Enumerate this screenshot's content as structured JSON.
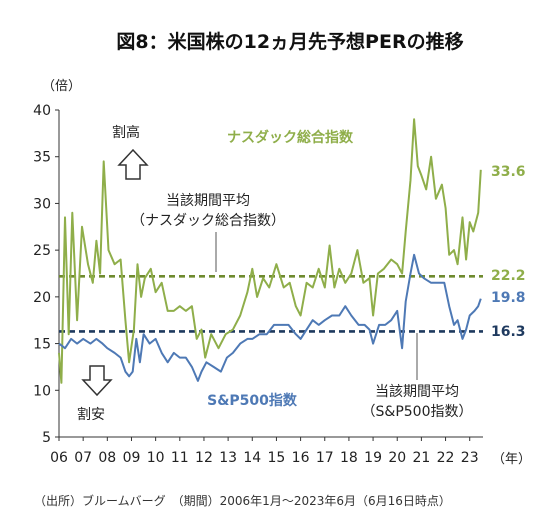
{
  "chart_data": {
    "type": "line",
    "title": "図8：米国株の12ヵ月先予想PERの推移",
    "ylabel": "（倍）",
    "xlabel": "（年）",
    "ylim": [
      5,
      40
    ],
    "yticks": [
      5,
      10,
      15,
      20,
      25,
      30,
      35,
      40
    ],
    "xlim": [
      2006.0,
      2023.55
    ],
    "xticks": [
      2006,
      2007,
      2008,
      2009,
      2010,
      2011,
      2012,
      2013,
      2014,
      2015,
      2016,
      2017,
      2018,
      2019,
      2020,
      2021,
      2022,
      2023
    ],
    "xtick_labels": [
      "06",
      "07",
      "08",
      "09",
      "10",
      "11",
      "12",
      "13",
      "14",
      "15",
      "16",
      "17",
      "18",
      "19",
      "20",
      "21",
      "22",
      "23"
    ],
    "series": [
      {
        "name": "ナスダック総合指数",
        "color": "#8fae4a",
        "end_label": "33.6",
        "points": [
          [
            2006.0,
            14.0
          ],
          [
            2006.1,
            10.8
          ],
          [
            2006.25,
            28.5
          ],
          [
            2006.4,
            16.0
          ],
          [
            2006.55,
            29.0
          ],
          [
            2006.75,
            17.5
          ],
          [
            2006.95,
            27.5
          ],
          [
            2007.2,
            23.5
          ],
          [
            2007.4,
            21.5
          ],
          [
            2007.55,
            26.0
          ],
          [
            2007.7,
            22.5
          ],
          [
            2007.85,
            34.5
          ],
          [
            2008.05,
            25.0
          ],
          [
            2008.3,
            23.5
          ],
          [
            2008.55,
            24.0
          ],
          [
            2008.75,
            17.5
          ],
          [
            2008.9,
            13.0
          ],
          [
            2009.1,
            16.5
          ],
          [
            2009.25,
            23.5
          ],
          [
            2009.4,
            20.0
          ],
          [
            2009.55,
            22.0
          ],
          [
            2009.8,
            23.0
          ],
          [
            2010.0,
            20.5
          ],
          [
            2010.25,
            21.5
          ],
          [
            2010.5,
            18.5
          ],
          [
            2010.75,
            18.5
          ],
          [
            2011.0,
            19.0
          ],
          [
            2011.25,
            18.5
          ],
          [
            2011.5,
            19.0
          ],
          [
            2011.7,
            15.5
          ],
          [
            2011.9,
            16.5
          ],
          [
            2012.05,
            13.5
          ],
          [
            2012.3,
            16.0
          ],
          [
            2012.6,
            14.5
          ],
          [
            2012.9,
            16.0
          ],
          [
            2013.2,
            16.5
          ],
          [
            2013.5,
            18.0
          ],
          [
            2013.8,
            20.5
          ],
          [
            2014.0,
            23.0
          ],
          [
            2014.2,
            20.0
          ],
          [
            2014.45,
            22.0
          ],
          [
            2014.7,
            21.0
          ],
          [
            2015.0,
            23.5
          ],
          [
            2015.3,
            21.0
          ],
          [
            2015.55,
            21.5
          ],
          [
            2015.8,
            19.0
          ],
          [
            2016.0,
            18.0
          ],
          [
            2016.25,
            21.5
          ],
          [
            2016.5,
            21.0
          ],
          [
            2016.75,
            23.0
          ],
          [
            2017.0,
            21.0
          ],
          [
            2017.2,
            25.5
          ],
          [
            2017.4,
            21.0
          ],
          [
            2017.6,
            23.0
          ],
          [
            2017.85,
            21.5
          ],
          [
            2018.1,
            22.5
          ],
          [
            2018.35,
            25.0
          ],
          [
            2018.6,
            21.5
          ],
          [
            2018.85,
            22.0
          ],
          [
            2019.0,
            18.0
          ],
          [
            2019.2,
            22.5
          ],
          [
            2019.45,
            23.0
          ],
          [
            2019.75,
            24.0
          ],
          [
            2020.0,
            23.5
          ],
          [
            2020.2,
            22.5
          ],
          [
            2020.35,
            27.0
          ],
          [
            2020.55,
            32.5
          ],
          [
            2020.7,
            39.0
          ],
          [
            2020.85,
            34.0
          ],
          [
            2021.0,
            33.0
          ],
          [
            2021.2,
            31.5
          ],
          [
            2021.4,
            35.0
          ],
          [
            2021.6,
            30.5
          ],
          [
            2021.85,
            32.0
          ],
          [
            2022.0,
            29.5
          ],
          [
            2022.15,
            24.5
          ],
          [
            2022.35,
            25.0
          ],
          [
            2022.5,
            23.5
          ],
          [
            2022.7,
            28.5
          ],
          [
            2022.85,
            24.0
          ],
          [
            2023.0,
            28.0
          ],
          [
            2023.15,
            27.0
          ],
          [
            2023.35,
            29.0
          ],
          [
            2023.46,
            33.6
          ]
        ],
        "period_average": {
          "value": 22.2,
          "label": "22.2",
          "caption": "当該期間平均",
          "caption2": "（ナスダック総合指数）"
        }
      },
      {
        "name": "S&P500指数",
        "color": "#4e79b5",
        "end_label": "19.8",
        "points": [
          [
            2006.0,
            15.0
          ],
          [
            2006.25,
            14.5
          ],
          [
            2006.5,
            15.5
          ],
          [
            2006.75,
            15.0
          ],
          [
            2007.0,
            15.5
          ],
          [
            2007.3,
            15.0
          ],
          [
            2007.55,
            15.5
          ],
          [
            2007.8,
            15.0
          ],
          [
            2008.0,
            14.5
          ],
          [
            2008.3,
            14.0
          ],
          [
            2008.55,
            13.5
          ],
          [
            2008.75,
            12.0
          ],
          [
            2008.9,
            11.5
          ],
          [
            2009.05,
            12.0
          ],
          [
            2009.2,
            15.5
          ],
          [
            2009.35,
            13.0
          ],
          [
            2009.5,
            16.0
          ],
          [
            2009.75,
            15.0
          ],
          [
            2010.0,
            15.5
          ],
          [
            2010.25,
            14.0
          ],
          [
            2010.5,
            13.0
          ],
          [
            2010.75,
            14.0
          ],
          [
            2011.0,
            13.5
          ],
          [
            2011.25,
            13.5
          ],
          [
            2011.5,
            12.5
          ],
          [
            2011.75,
            11.0
          ],
          [
            2011.9,
            12.0
          ],
          [
            2012.1,
            13.0
          ],
          [
            2012.4,
            12.5
          ],
          [
            2012.7,
            12.0
          ],
          [
            2012.95,
            13.5
          ],
          [
            2013.2,
            14.0
          ],
          [
            2013.5,
            15.0
          ],
          [
            2013.8,
            15.5
          ],
          [
            2014.0,
            15.5
          ],
          [
            2014.3,
            16.0
          ],
          [
            2014.6,
            16.0
          ],
          [
            2014.9,
            17.0
          ],
          [
            2015.2,
            17.0
          ],
          [
            2015.5,
            17.0
          ],
          [
            2015.8,
            16.0
          ],
          [
            2016.0,
            15.5
          ],
          [
            2016.25,
            16.5
          ],
          [
            2016.5,
            17.5
          ],
          [
            2016.75,
            17.0
          ],
          [
            2017.0,
            17.5
          ],
          [
            2017.3,
            18.0
          ],
          [
            2017.6,
            18.0
          ],
          [
            2017.85,
            19.0
          ],
          [
            2018.1,
            18.0
          ],
          [
            2018.4,
            17.0
          ],
          [
            2018.65,
            17.0
          ],
          [
            2018.85,
            16.5
          ],
          [
            2019.0,
            15.0
          ],
          [
            2019.25,
            17.0
          ],
          [
            2019.5,
            17.0
          ],
          [
            2019.75,
            17.5
          ],
          [
            2020.0,
            18.5
          ],
          [
            2020.2,
            14.5
          ],
          [
            2020.35,
            19.5
          ],
          [
            2020.55,
            22.5
          ],
          [
            2020.7,
            24.5
          ],
          [
            2020.9,
            22.5
          ],
          [
            2021.1,
            22.0
          ],
          [
            2021.4,
            21.5
          ],
          [
            2021.7,
            21.5
          ],
          [
            2021.95,
            21.5
          ],
          [
            2022.15,
            19.0
          ],
          [
            2022.35,
            17.0
          ],
          [
            2022.5,
            17.5
          ],
          [
            2022.7,
            15.5
          ],
          [
            2022.85,
            16.5
          ],
          [
            2023.0,
            18.0
          ],
          [
            2023.2,
            18.5
          ],
          [
            2023.35,
            19.0
          ],
          [
            2023.46,
            19.8
          ]
        ],
        "period_average": {
          "value": 16.3,
          "label": "16.3",
          "caption": "当該期間平均",
          "caption2": "（S&P500指数）"
        }
      }
    ],
    "annotations": {
      "up_label": "割高",
      "down_label": "割安"
    },
    "source": "（出所）ブルームバーグ　（期間）2006年1月～2023年6月（6月16日時点）"
  }
}
